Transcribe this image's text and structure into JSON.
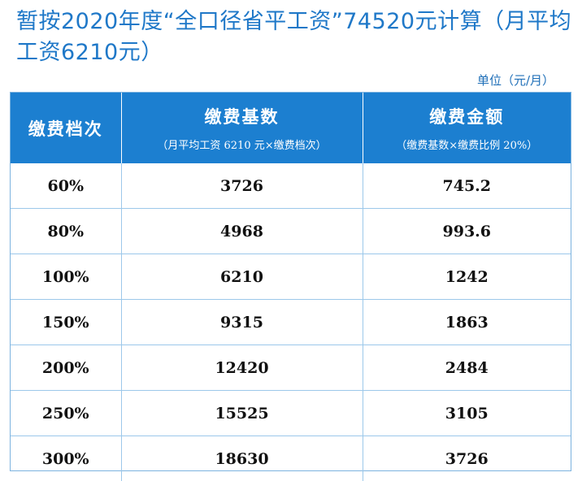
{
  "heading": "暂按2020年度“全口径省平工资”74520元计算（月平均工资6210元）",
  "unit_label": "单位（元/月）",
  "table": {
    "headers": [
      {
        "title": "缴费档次",
        "subtitle": ""
      },
      {
        "title": "缴费基数",
        "subtitle": "（月平均工资 6210 元×缴费档次）"
      },
      {
        "title": "缴费金额",
        "subtitle": "（缴费基数×缴费比例 20%）"
      }
    ],
    "rows": [
      {
        "level": "60%",
        "base": "3726",
        "amount": "745.2"
      },
      {
        "level": "80%",
        "base": "4968",
        "amount": "993.6"
      },
      {
        "level": "100%",
        "base": "6210",
        "amount": "1242"
      },
      {
        "level": "150%",
        "base": "9315",
        "amount": "1863"
      },
      {
        "level": "200%",
        "base": "12420",
        "amount": "2484"
      },
      {
        "level": "250%",
        "base": "15525",
        "amount": "3105"
      },
      {
        "level": "300%",
        "base": "18630",
        "amount": "3726"
      }
    ]
  },
  "colors": {
    "header_bg": "#1c7fd0",
    "heading_text": "#1f78c8",
    "grid": "#9cc8ea"
  }
}
